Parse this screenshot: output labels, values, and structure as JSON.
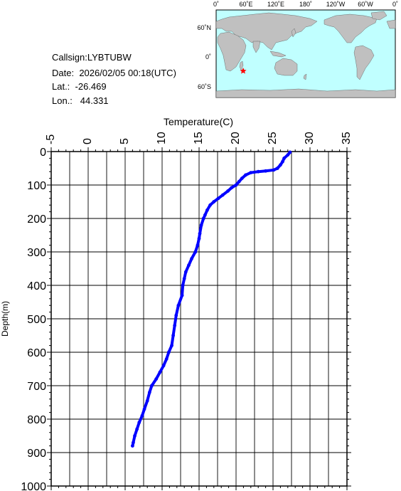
{
  "station": {
    "callsign_label": "Callsign:",
    "callsign": "LYBTUBW",
    "date_label": "Date:",
    "date": "2026/02/05 00:18(UTC)",
    "lat_label": "Lat.:",
    "lat": "-26.469",
    "lon_label": "Lon.:",
    "lon": "44.331"
  },
  "map": {
    "top_labels": [
      "0˚",
      "60˚E",
      "120˚E",
      "180˚",
      "120˚W",
      "60˚W",
      "0˚"
    ],
    "left_labels": [
      "60˚N",
      "0˚",
      "60˚S"
    ],
    "ocean_color": "#c0ffff",
    "land_color": "#c0c0c0",
    "marker_color": "#ff0000",
    "marker_icon": "star-icon"
  },
  "chart_data": {
    "type": "line",
    "xlabel": "Temperature(C)",
    "ylabel": "Depth(m)",
    "xlim": [
      -5,
      35
    ],
    "ylim": [
      1000,
      0
    ],
    "x_ticks": [
      "-5",
      "0",
      "5",
      "10",
      "15",
      "20",
      "25",
      "30",
      "35"
    ],
    "y_ticks": [
      "0",
      "100",
      "200",
      "300",
      "400",
      "500",
      "600",
      "700",
      "800",
      "900",
      "1000"
    ],
    "grid": true,
    "series": [
      {
        "color": "#0000ff",
        "points": [
          [
            27.3,
            2
          ],
          [
            27.0,
            10
          ],
          [
            26.5,
            20
          ],
          [
            26.3,
            30
          ],
          [
            26.0,
            40
          ],
          [
            25.6,
            50
          ],
          [
            25.1,
            55
          ],
          [
            24.0,
            58
          ],
          [
            23.0,
            60
          ],
          [
            22.0,
            63
          ],
          [
            21.3,
            70
          ],
          [
            20.8,
            80
          ],
          [
            20.4,
            90
          ],
          [
            20.0,
            100
          ],
          [
            19.4,
            108
          ],
          [
            18.9,
            118
          ],
          [
            18.2,
            130
          ],
          [
            17.6,
            140
          ],
          [
            17.0,
            150
          ],
          [
            16.5,
            160
          ],
          [
            16.1,
            175
          ],
          [
            15.8,
            190
          ],
          [
            15.6,
            200
          ],
          [
            15.3,
            220
          ],
          [
            15.1,
            245
          ],
          [
            15.0,
            260
          ],
          [
            14.8,
            280
          ],
          [
            14.5,
            300
          ],
          [
            14.0,
            320
          ],
          [
            13.6,
            340
          ],
          [
            13.2,
            360
          ],
          [
            13.0,
            380
          ],
          [
            12.8,
            400
          ],
          [
            12.7,
            430
          ],
          [
            12.2,
            460
          ],
          [
            11.9,
            490
          ],
          [
            11.7,
            520
          ],
          [
            11.5,
            550
          ],
          [
            11.3,
            580
          ],
          [
            10.9,
            600
          ],
          [
            10.6,
            620
          ],
          [
            10.2,
            640
          ],
          [
            9.7,
            660
          ],
          [
            9.2,
            680
          ],
          [
            8.6,
            700
          ],
          [
            8.3,
            720
          ],
          [
            8.0,
            745
          ],
          [
            7.6,
            770
          ],
          [
            7.3,
            790
          ],
          [
            6.9,
            810
          ],
          [
            6.6,
            830
          ],
          [
            6.3,
            850
          ],
          [
            6.1,
            870
          ],
          [
            6.0,
            880
          ]
        ]
      }
    ]
  }
}
